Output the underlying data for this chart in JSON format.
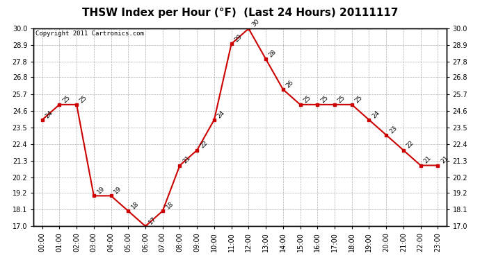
{
  "title": "THSW Index per Hour (°F)  (Last 24 Hours) 20111117",
  "copyright": "Copyright 2011 Cartronics.com",
  "hours": [
    "00:00",
    "01:00",
    "02:00",
    "03:00",
    "04:00",
    "05:00",
    "06:00",
    "07:00",
    "08:00",
    "09:00",
    "10:00",
    "11:00",
    "12:00",
    "13:00",
    "14:00",
    "15:00",
    "16:00",
    "17:00",
    "18:00",
    "19:00",
    "20:00",
    "21:00",
    "22:00",
    "23:00"
  ],
  "values": [
    24,
    25,
    25,
    19,
    19,
    18,
    17,
    18,
    21,
    22,
    24,
    29,
    30,
    28,
    26,
    25,
    25,
    25,
    25,
    24,
    23,
    22,
    21,
    21
  ],
  "ylim_min": 17.0,
  "ylim_max": 30.0,
  "yticks": [
    17.0,
    18.1,
    19.2,
    20.2,
    21.3,
    22.4,
    23.5,
    24.6,
    25.7,
    26.8,
    27.8,
    28.9,
    30.0
  ],
  "line_color": "#cc0000",
  "marker_color": "#cc0000",
  "bg_color": "#ffffff",
  "grid_color": "#999999",
  "title_fontsize": 11,
  "annot_fontsize": 6.5,
  "tick_fontsize": 7,
  "copyright_fontsize": 6.5
}
